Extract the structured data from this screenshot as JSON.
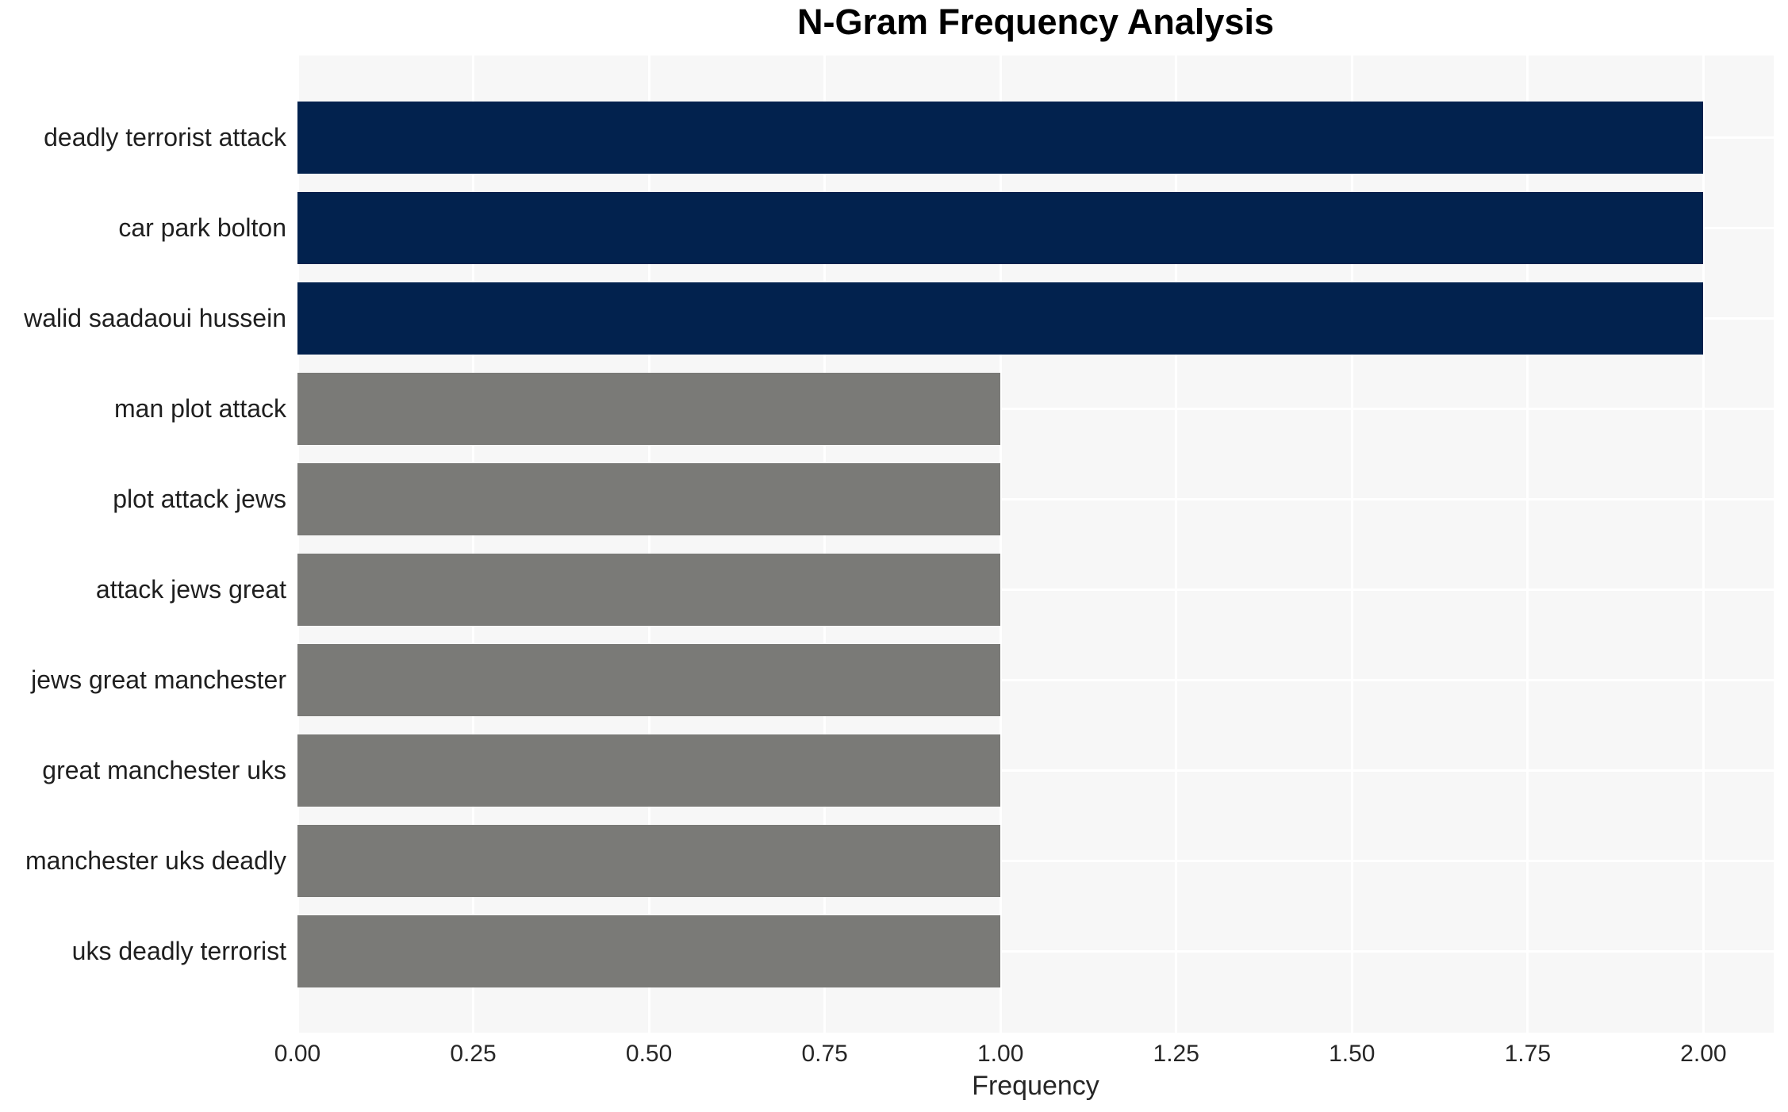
{
  "chart_data": {
    "type": "bar",
    "orientation": "horizontal",
    "title": "N-Gram Frequency Analysis",
    "xlabel": "Frequency",
    "ylabel": "",
    "categories": [
      "deadly terrorist attack",
      "car park bolton",
      "walid saadaoui hussein",
      "man plot attack",
      "plot attack jews",
      "attack jews great",
      "jews great manchester",
      "great manchester uks",
      "manchester uks deadly",
      "uks deadly terrorist"
    ],
    "values": [
      2,
      2,
      2,
      1,
      1,
      1,
      1,
      1,
      1,
      1
    ],
    "bar_colors": [
      "#02224e",
      "#02224e",
      "#02224e",
      "#7a7a77",
      "#7a7a77",
      "#7a7a77",
      "#7a7a77",
      "#7a7a77",
      "#7a7a77",
      "#7a7a77"
    ],
    "xlim": [
      0,
      2.1
    ],
    "xticks": [
      0,
      0.25,
      0.5,
      0.75,
      1.0,
      1.25,
      1.5,
      1.75,
      2.0
    ],
    "xtick_labels": [
      "0.00",
      "0.25",
      "0.50",
      "0.75",
      "1.00",
      "1.25",
      "1.50",
      "1.75",
      "2.00"
    ],
    "grid": true,
    "legend": "none",
    "colors": {
      "plot_background": "#f7f7f7",
      "figure_background": "#ffffff",
      "gridline": "#ffffff",
      "bar_high": "#02224e",
      "bar_low": "#7a7a77",
      "tick_text": "#262626",
      "label_text": "#1f1f1f",
      "title_text": "#000000"
    }
  }
}
